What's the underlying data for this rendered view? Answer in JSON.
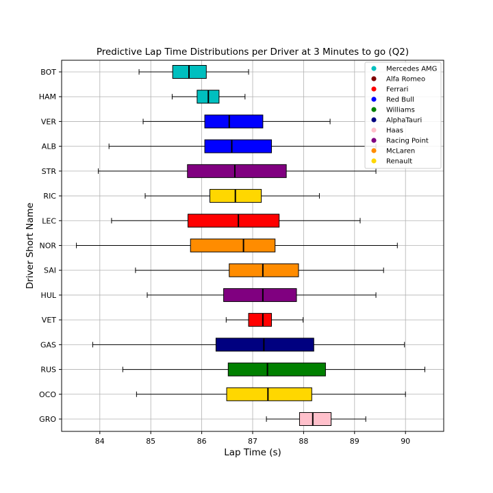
{
  "chart_data": {
    "type": "boxplot-horizontal",
    "title": "Predictive Lap Time Distributions per Driver at 3 Minutes to go (Q2)",
    "xlabel": "Lap Time (s)",
    "ylabel": "Driver Short Name",
    "xlim": [
      83.25,
      90.75
    ],
    "xticks": [
      84,
      85,
      86,
      87,
      88,
      89,
      90
    ],
    "grid": true,
    "legend_position": "top-right",
    "legend": [
      {
        "name": "Mercedes AMG",
        "color": "#00bfbf"
      },
      {
        "name": "Alfa Romeo",
        "color": "#800000"
      },
      {
        "name": "Ferrari",
        "color": "#ff0000"
      },
      {
        "name": "Red Bull",
        "color": "#0000ff"
      },
      {
        "name": "Williams",
        "color": "#008000"
      },
      {
        "name": "AlphaTauri",
        "color": "#000080"
      },
      {
        "name": "Haas",
        "color": "#ffc0cb"
      },
      {
        "name": "Racing Point",
        "color": "#800080"
      },
      {
        "name": "McLaren",
        "color": "#ff8c00"
      },
      {
        "name": "Renault",
        "color": "#ffd700"
      }
    ],
    "drivers": [
      {
        "name": "BOT",
        "team": "Mercedes AMG",
        "color": "#00bfbf",
        "whisker_low": 84.77,
        "q1": 85.43,
        "median": 85.75,
        "q3": 86.09,
        "whisker_high": 86.92
      },
      {
        "name": "HAM",
        "team": "Mercedes AMG",
        "color": "#00bfbf",
        "whisker_low": 85.42,
        "q1": 85.91,
        "median": 86.13,
        "q3": 86.34,
        "whisker_high": 86.85
      },
      {
        "name": "VER",
        "team": "Red Bull",
        "color": "#0000ff",
        "whisker_low": 84.85,
        "q1": 86.06,
        "median": 86.54,
        "q3": 87.2,
        "whisker_high": 88.52
      },
      {
        "name": "ALB",
        "team": "Red Bull",
        "color": "#0000ff",
        "whisker_low": 84.18,
        "q1": 86.06,
        "median": 86.59,
        "q3": 87.37,
        "whisker_high": 89.42
      },
      {
        "name": "STR",
        "team": "Racing Point",
        "color": "#800080",
        "whisker_low": 83.97,
        "q1": 85.72,
        "median": 86.65,
        "q3": 87.66,
        "whisker_high": 89.42
      },
      {
        "name": "RIC",
        "team": "Renault",
        "color": "#ffd700",
        "whisker_low": 84.89,
        "q1": 86.16,
        "median": 86.66,
        "q3": 87.17,
        "whisker_high": 88.31
      },
      {
        "name": "LEC",
        "team": "Ferrari",
        "color": "#ff0000",
        "whisker_low": 84.23,
        "q1": 85.73,
        "median": 86.72,
        "q3": 87.52,
        "whisker_high": 89.11
      },
      {
        "name": "NOR",
        "team": "McLaren",
        "color": "#ff8c00",
        "whisker_low": 83.54,
        "q1": 85.78,
        "median": 86.82,
        "q3": 87.44,
        "whisker_high": 89.84
      },
      {
        "name": "SAI",
        "team": "McLaren",
        "color": "#ff8c00",
        "whisker_low": 84.7,
        "q1": 86.54,
        "median": 87.2,
        "q3": 87.9,
        "whisker_high": 89.57
      },
      {
        "name": "HUL",
        "team": "Racing Point",
        "color": "#800080",
        "whisker_low": 84.93,
        "q1": 86.43,
        "median": 87.2,
        "q3": 87.86,
        "whisker_high": 89.42
      },
      {
        "name": "VET",
        "team": "Ferrari",
        "color": "#ff0000",
        "whisker_low": 86.48,
        "q1": 86.92,
        "median": 87.2,
        "q3": 87.37,
        "whisker_high": 87.99
      },
      {
        "name": "GAS",
        "team": "AlphaTauri",
        "color": "#000080",
        "whisker_low": 83.86,
        "q1": 86.28,
        "median": 87.22,
        "q3": 88.2,
        "whisker_high": 89.98
      },
      {
        "name": "RUS",
        "team": "Williams",
        "color": "#008000",
        "whisker_low": 84.45,
        "q1": 86.52,
        "median": 87.29,
        "q3": 88.43,
        "whisker_high": 90.38
      },
      {
        "name": "OCO",
        "team": "Renault",
        "color": "#ffd700",
        "whisker_low": 84.72,
        "q1": 86.49,
        "median": 87.3,
        "q3": 88.16,
        "whisker_high": 90.0
      },
      {
        "name": "GRO",
        "team": "Haas",
        "color": "#ffc0cb",
        "whisker_low": 87.27,
        "q1": 87.92,
        "median": 88.18,
        "q3": 88.54,
        "whisker_high": 89.22
      }
    ]
  }
}
